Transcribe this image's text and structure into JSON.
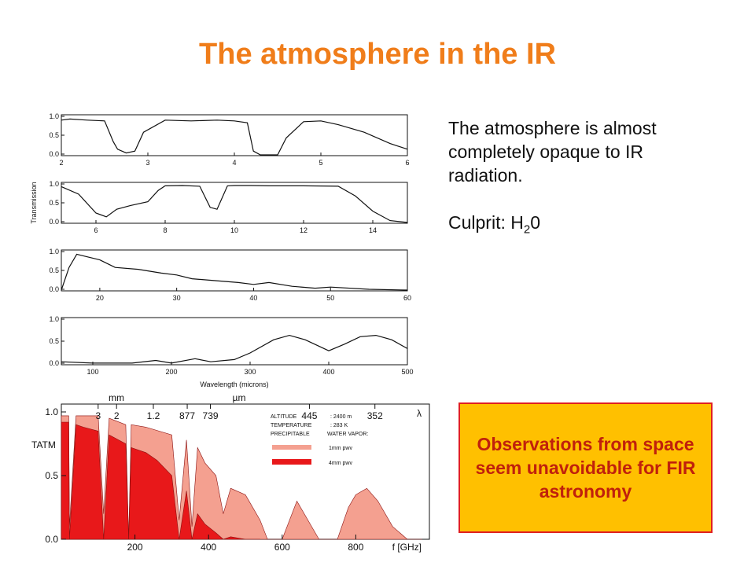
{
  "slide": {
    "title": "The atmosphere in the IR",
    "text_line1": "The atmosphere is almost completely opaque to IR radiation.",
    "culprit_prefix": "Culprit: H",
    "culprit_sub": "2",
    "culprit_suffix": "0",
    "callout": "Observations from space seem unavoidable for FIR astronomy"
  },
  "colors": {
    "title": "#f07d1a",
    "callout_bg": "#ffc000",
    "callout_border": "#e02020",
    "callout_text": "#c0200c",
    "pwv_1mm": "#f4a090",
    "pwv_4mm": "#e8181a"
  },
  "chart_data": [
    {
      "type": "line",
      "panel": "2-6 microns",
      "ylabel": "Transmission",
      "xlim": [
        2,
        6
      ],
      "ylim": [
        0,
        1
      ],
      "y_ticks": [
        "1.0",
        "0.5",
        "0.0"
      ],
      "x_ticks": [
        "2",
        "3",
        "4",
        "5",
        "6"
      ],
      "x": [
        2.0,
        2.1,
        2.3,
        2.5,
        2.6,
        2.65,
        2.75,
        2.85,
        2.95,
        3.2,
        3.5,
        3.8,
        4.0,
        4.15,
        4.22,
        4.3,
        4.5,
        4.6,
        4.8,
        5.0,
        5.2,
        5.5,
        5.8,
        6.0
      ],
      "y": [
        0.92,
        0.95,
        0.92,
        0.9,
        0.35,
        0.15,
        0.05,
        0.1,
        0.6,
        0.92,
        0.9,
        0.92,
        0.9,
        0.85,
        0.1,
        0.0,
        0.0,
        0.45,
        0.88,
        0.9,
        0.8,
        0.6,
        0.3,
        0.15
      ]
    },
    {
      "type": "line",
      "panel": "5-15 microns",
      "xlim": [
        5,
        15
      ],
      "ylim": [
        0,
        1
      ],
      "y_ticks": [
        "1.0",
        "0.5",
        "0.0"
      ],
      "x_ticks": [
        "6",
        "8",
        "10",
        "12",
        "14"
      ],
      "x": [
        5.0,
        5.5,
        6.0,
        6.3,
        6.6,
        7.0,
        7.5,
        7.8,
        8.0,
        8.5,
        9.0,
        9.3,
        9.5,
        9.8,
        10.0,
        10.5,
        11.0,
        12.0,
        13.0,
        13.5,
        14.0,
        14.5,
        15.0
      ],
      "y": [
        0.95,
        0.75,
        0.25,
        0.15,
        0.35,
        0.45,
        0.55,
        0.85,
        0.97,
        0.98,
        0.96,
        0.4,
        0.35,
        0.97,
        0.98,
        0.98,
        0.97,
        0.97,
        0.96,
        0.7,
        0.3,
        0.05,
        0.0
      ]
    },
    {
      "type": "line",
      "panel": "15-60 microns",
      "xlim": [
        15,
        60
      ],
      "ylim": [
        0,
        1
      ],
      "y_ticks": [
        "1.0",
        "0.5",
        "0.0"
      ],
      "x_ticks": [
        "20",
        "30",
        "40",
        "50",
        "60"
      ],
      "x": [
        15,
        16,
        17,
        18,
        20,
        22,
        25,
        28,
        30,
        32,
        35,
        38,
        40,
        42,
        45,
        48,
        50,
        55,
        60
      ],
      "y": [
        0.0,
        0.6,
        0.95,
        0.9,
        0.8,
        0.6,
        0.55,
        0.45,
        0.4,
        0.3,
        0.25,
        0.2,
        0.15,
        0.2,
        0.1,
        0.05,
        0.08,
        0.02,
        0.0
      ]
    },
    {
      "type": "line",
      "panel": "60-500 microns",
      "xlabel": "Wavelength (microns)",
      "xlim": [
        60,
        500
      ],
      "ylim": [
        0,
        1
      ],
      "y_ticks": [
        "1.0",
        "0.5",
        "0.0"
      ],
      "x_ticks": [
        "100",
        "200",
        "300",
        "400",
        "500"
      ],
      "x": [
        60,
        100,
        150,
        180,
        200,
        230,
        250,
        280,
        300,
        330,
        350,
        370,
        400,
        420,
        440,
        460,
        480,
        500
      ],
      "y": [
        0.05,
        0.02,
        0.02,
        0.08,
        0.02,
        0.12,
        0.05,
        0.1,
        0.25,
        0.55,
        0.65,
        0.55,
        0.3,
        0.45,
        0.62,
        0.65,
        0.55,
        0.35
      ]
    },
    {
      "type": "area",
      "panel": "mm / submm",
      "ylabel": "TATM",
      "xlabel": "f [GHz]",
      "xlim": [
        0,
        1000
      ],
      "ylim": [
        0,
        1
      ],
      "y_ticks": [
        "1.0",
        "0.5",
        "0.0"
      ],
      "x_ticks": [
        "200",
        "400",
        "600",
        "800"
      ],
      "top_axis_mm_label": "mm",
      "top_axis_um_label": "µm",
      "top_axis_lambda_label": "λ",
      "top_ticks": [
        "3",
        "2",
        "1.2",
        "877",
        "739",
        "445",
        "352"
      ],
      "legend": {
        "altitude_label": "ALTITUDE",
        "altitude": ": 2400 m",
        "temperature_label": "TEMPERATURE",
        "temperature": ": 283 K",
        "precip_label": "PRECIPITABLE",
        "precip": "WATER VAPOR:",
        "series1": "1mm pwv",
        "series2": "4mm pwv"
      },
      "series": [
        {
          "name": "1mm pwv",
          "x": [
            0,
            20,
            22,
            40,
            60,
            100,
            115,
            130,
            175,
            183,
            190,
            230,
            300,
            320,
            340,
            355,
            370,
            390,
            420,
            440,
            460,
            500,
            540,
            560,
            600,
            640,
            660,
            700,
            750,
            780,
            800,
            830,
            860,
            900,
            940,
            980
          ],
          "y": [
            0.97,
            0.97,
            0.1,
            0.97,
            0.97,
            0.97,
            0.2,
            0.95,
            0.9,
            0.0,
            0.9,
            0.88,
            0.82,
            0.15,
            0.78,
            0.1,
            0.72,
            0.6,
            0.5,
            0.2,
            0.4,
            0.35,
            0.15,
            0.0,
            0.0,
            0.3,
            0.2,
            0.0,
            0.0,
            0.25,
            0.35,
            0.4,
            0.3,
            0.1,
            0.0,
            0.0
          ]
        },
        {
          "name": "4mm pwv",
          "x": [
            0,
            20,
            22,
            40,
            60,
            100,
            115,
            130,
            175,
            183,
            190,
            230,
            260,
            300,
            320,
            340,
            355,
            370,
            390,
            420,
            440,
            460,
            500,
            540
          ],
          "y": [
            0.92,
            0.92,
            0.0,
            0.9,
            0.88,
            0.85,
            0.0,
            0.82,
            0.75,
            0.0,
            0.72,
            0.68,
            0.62,
            0.5,
            0.0,
            0.38,
            0.0,
            0.2,
            0.12,
            0.05,
            0.0,
            0.02,
            0.0,
            0.0
          ]
        }
      ]
    }
  ]
}
